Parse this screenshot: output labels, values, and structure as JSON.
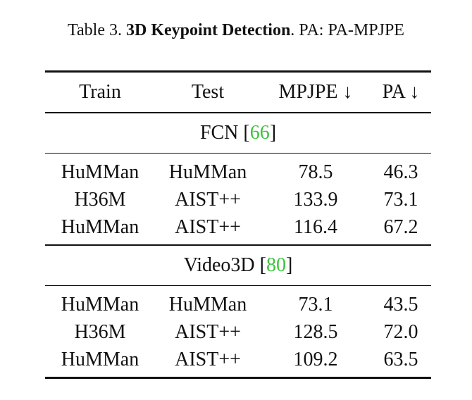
{
  "caption": {
    "prefix": "Table 3. ",
    "title": "3D Keypoint Detection",
    "suffix": ". PA: PA-MPJPE"
  },
  "table": {
    "headers": [
      "Train",
      "Test",
      "MPJPE ↓",
      "PA ↓"
    ],
    "groups": [
      {
        "name": "FCN",
        "cite": "66",
        "rows": [
          [
            "HuMMan",
            "HuMMan",
            "78.5",
            "46.3"
          ],
          [
            "H36M",
            "AIST++",
            "133.9",
            "73.1"
          ],
          [
            "HuMMan",
            "AIST++",
            "116.4",
            "67.2"
          ]
        ]
      },
      {
        "name": "Video3D",
        "cite": "80",
        "rows": [
          [
            "HuMMan",
            "HuMMan",
            "73.1",
            "43.5"
          ],
          [
            "H36M",
            "AIST++",
            "128.5",
            "72.0"
          ],
          [
            "HuMMan",
            "AIST++",
            "109.2",
            "63.5"
          ]
        ]
      }
    ]
  },
  "colors": {
    "citation": "#3cc43c",
    "text": "#111111"
  }
}
